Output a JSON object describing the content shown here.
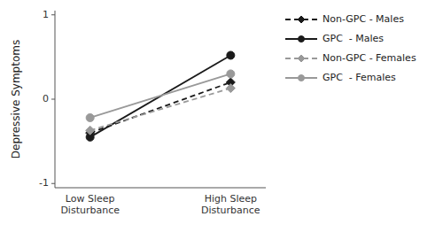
{
  "chart_data": {
    "type": "line",
    "categories": [
      "Low Sleep\nDisturbance",
      "High Sleep\nDisturbance"
    ],
    "series": [
      {
        "name": "Non-GPC - Males",
        "color": "#1a1a1a",
        "line_style": "dashed",
        "marker": "diamond",
        "values": [
          -0.4,
          0.2
        ]
      },
      {
        "name": "GPC  - Males",
        "color": "#1a1a1a",
        "line_style": "solid",
        "marker": "circle",
        "values": [
          -0.45,
          0.52
        ]
      },
      {
        "name": "Non-GPC - Females",
        "color": "#999999",
        "line_style": "dashed",
        "marker": "diamond",
        "values": [
          -0.37,
          0.13
        ]
      },
      {
        "name": "GPC  - Females",
        "color": "#999999",
        "line_style": "solid",
        "marker": "circle",
        "values": [
          -0.22,
          0.3
        ]
      }
    ],
    "y_label": "Depressive Symptoms",
    "ylim": [
      -1.05,
      1.05
    ],
    "yticks": [
      -1,
      0,
      1
    ],
    "grid": false,
    "legend": "right"
  }
}
